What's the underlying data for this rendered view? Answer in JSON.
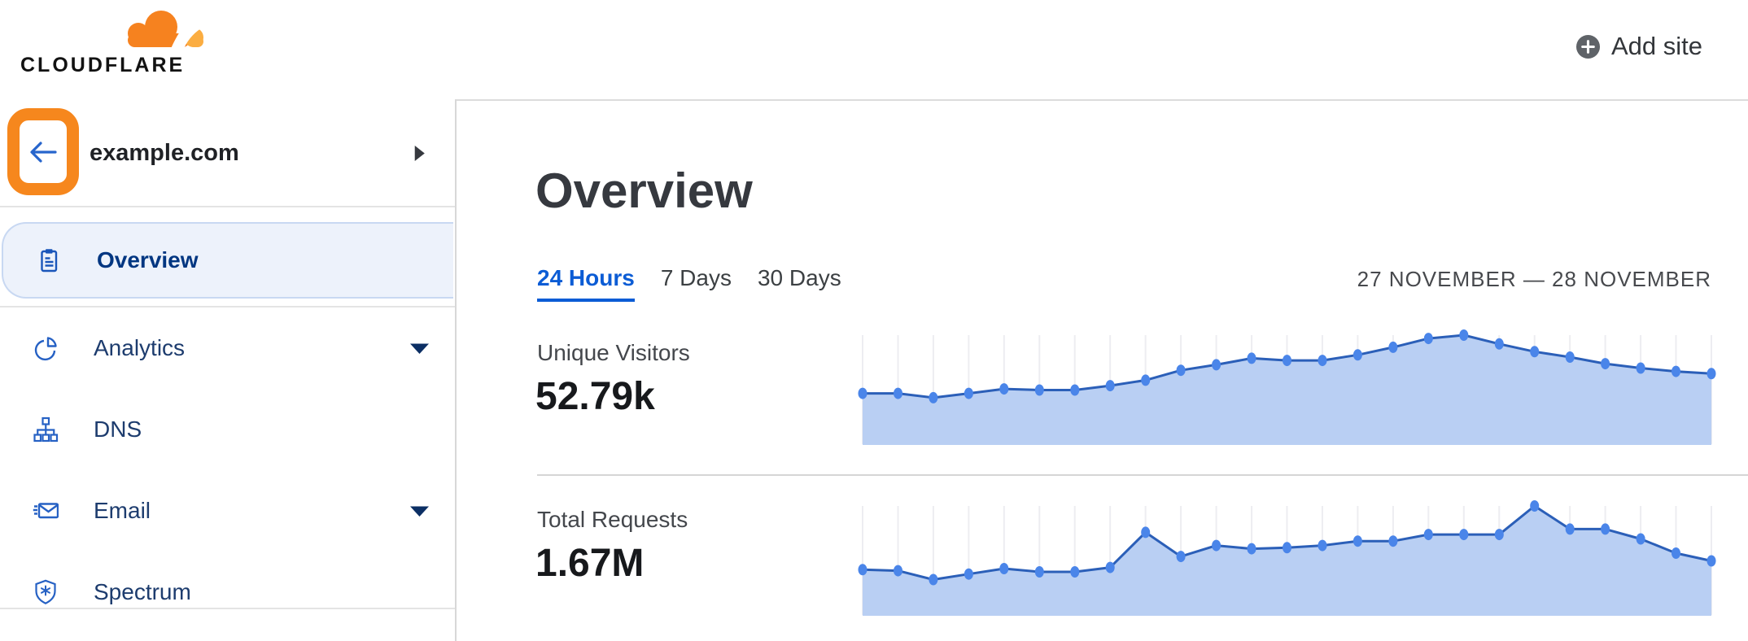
{
  "header": {
    "logo_text": "CLOUDFLARE",
    "add_site_label": "Add site"
  },
  "sidebar": {
    "site": {
      "name": "example.com",
      "back_button_annotation": {
        "highlighted": true,
        "highlight_color": "#f6871d"
      }
    },
    "items": [
      {
        "label": "Overview",
        "icon": "clipboard-icon",
        "selected": true,
        "has_caret": false
      },
      {
        "label": "Analytics",
        "icon": "pie-chart-icon",
        "selected": false,
        "has_caret": true
      },
      {
        "label": "DNS",
        "icon": "dns-tree-icon",
        "selected": false,
        "has_caret": false
      },
      {
        "label": "Email",
        "icon": "email-icon",
        "selected": false,
        "has_caret": true
      },
      {
        "label": "Spectrum",
        "icon": "shield-icon",
        "selected": false,
        "has_caret": false
      }
    ]
  },
  "main": {
    "title": "Overview",
    "tabs": [
      {
        "label": "24 Hours",
        "active": true
      },
      {
        "label": "7 Days",
        "active": false
      },
      {
        "label": "30 Days",
        "active": false
      }
    ],
    "date_range": "27 NOVEMBER — 28 NOVEMBER",
    "stats": [
      {
        "label": "Unique Visitors",
        "value": "52.79k"
      },
      {
        "label": "Total Requests",
        "value": "1.67M"
      }
    ]
  },
  "colors": {
    "brand_orange": "#f6821f",
    "brand_orange_light": "#fbad41",
    "active_tab_blue": "#0b5cd5",
    "nav_icon_blue": "#2661c4",
    "nav_text_navy": "#1d3c6e",
    "nav_selected_navy": "#003681",
    "chart_dot": "#4a85e9",
    "chart_line": "#2b5fb8",
    "chart_fill": "#b9cff3",
    "gridline": "#ededf1"
  },
  "chart_data": [
    {
      "type": "area",
      "title": "Unique Visitors",
      "total_shown": "52.79k",
      "x_axis": "time over selected 24-hour window (27–28 November), 25 hourly points, no tick labels shown",
      "y_axis": "no axis labels shown; values are relative line heights (0–1 of chart height)",
      "grid": "vertical gridlines at each point",
      "legend_position": "none",
      "values_relative": [
        0.47,
        0.47,
        0.43,
        0.47,
        0.51,
        0.5,
        0.5,
        0.54,
        0.59,
        0.68,
        0.73,
        0.79,
        0.77,
        0.77,
        0.82,
        0.89,
        0.97,
        1.0,
        0.92,
        0.85,
        0.8,
        0.74,
        0.7,
        0.67,
        0.65
      ]
    },
    {
      "type": "area",
      "title": "Total Requests",
      "total_shown": "1.67M",
      "x_axis": "time over selected 24-hour window (27–28 November), 25 hourly points, no tick labels shown",
      "y_axis": "no axis labels shown; values are relative line heights (0–1 of chart height)",
      "grid": "vertical gridlines at each point",
      "legend_position": "none",
      "values_relative": [
        0.42,
        0.41,
        0.33,
        0.38,
        0.43,
        0.4,
        0.4,
        0.44,
        0.76,
        0.54,
        0.64,
        0.61,
        0.62,
        0.64,
        0.68,
        0.68,
        0.74,
        0.74,
        0.74,
        1.0,
        0.79,
        0.79,
        0.7,
        0.57,
        0.5
      ]
    }
  ]
}
